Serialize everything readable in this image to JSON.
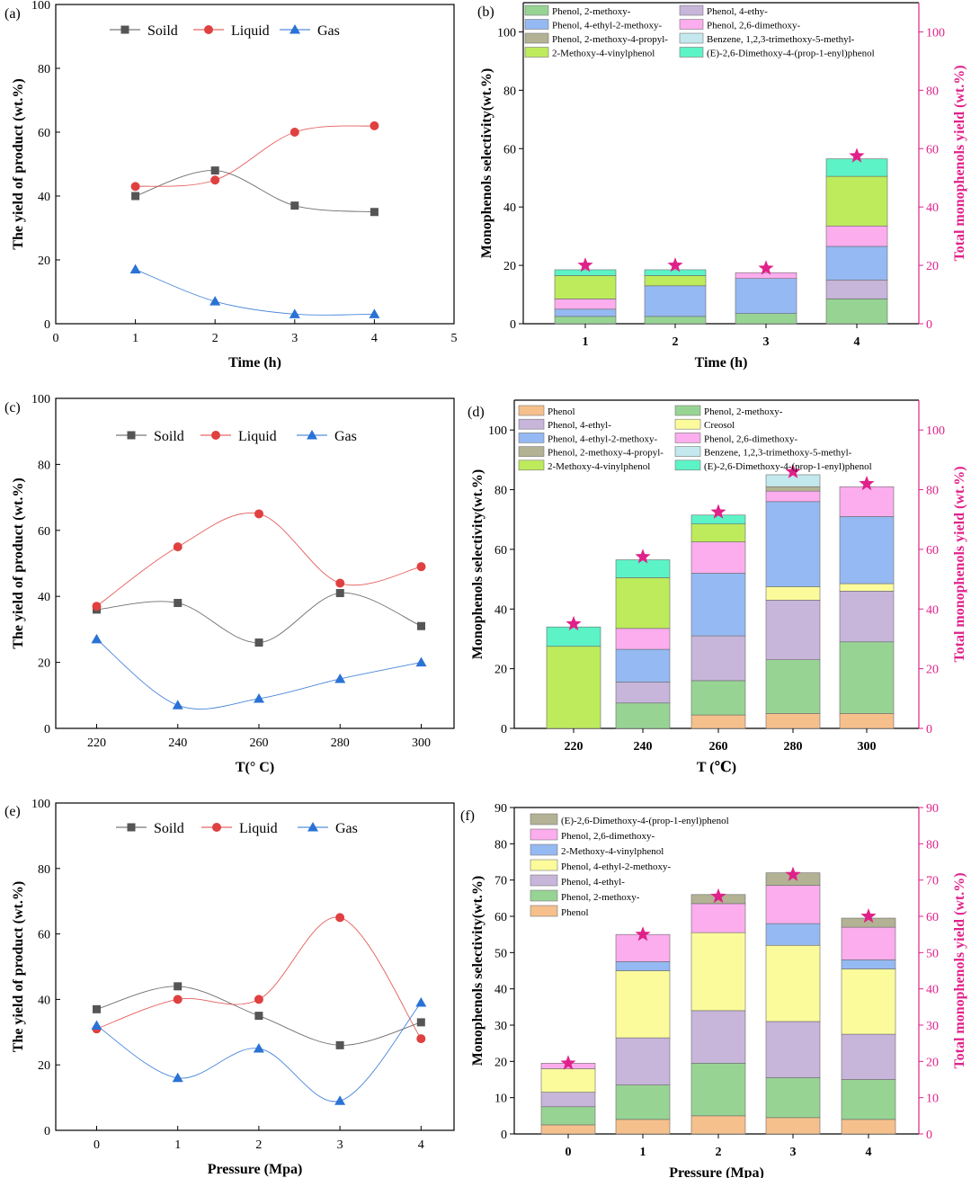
{
  "panel_labels": [
    "(a)",
    "(b)",
    "(c)",
    "(d)",
    "(e)",
    "(f)"
  ],
  "chart_data": [
    {
      "id": "a",
      "type": "line",
      "xlabel": "Time (h)",
      "ylabel": "The yield of product (wt.%)",
      "xlim": [
        0,
        5
      ],
      "ylim": [
        0,
        100
      ],
      "xticks": [
        "0",
        "1",
        "2",
        "3",
        "4",
        "5"
      ],
      "yticks": [
        "0",
        "20",
        "40",
        "60",
        "80",
        "100"
      ],
      "x": [
        1,
        2,
        3,
        4
      ],
      "series": [
        {
          "name": "Soild",
          "values": [
            40,
            48,
            37,
            35
          ],
          "color": "#555555",
          "marker": "square"
        },
        {
          "name": "Liquid",
          "values": [
            43,
            45,
            60,
            62
          ],
          "color": "#e04040",
          "marker": "circle"
        },
        {
          "name": "Gas",
          "values": [
            17,
            7,
            3,
            3
          ],
          "color": "#2a72d5",
          "marker": "triangle"
        }
      ]
    },
    {
      "id": "b",
      "type": "bar",
      "xlabel": "Time (h)",
      "ylabel": "Monophenols selectivity(wt.%)",
      "y2label": "Total monophenols yield (wt.%)",
      "ylim": [
        0,
        110
      ],
      "y2lim": [
        0,
        110
      ],
      "yticks": [
        "0",
        "20",
        "40",
        "60",
        "80",
        "100"
      ],
      "y2ticks": [
        "0",
        "20",
        "40",
        "60",
        "80",
        "100"
      ],
      "categories": [
        "1",
        "2",
        "3",
        "4"
      ],
      "series": [
        {
          "name": "Phenol, 2-methoxy-",
          "color": "#97d494",
          "values": [
            2.5,
            2.5,
            3.5,
            8.5
          ]
        },
        {
          "name": "Phenol, 4-ethy-",
          "color": "#c7b5da",
          "values": [
            0,
            0,
            0,
            6.5
          ]
        },
        {
          "name": "Phenol, 4-ethyl-2-methoxy-",
          "color": "#95b9f2",
          "values": [
            2.5,
            10.5,
            12,
            11.5
          ]
        },
        {
          "name": "Phenol, 2,6-dimethoxy-",
          "color": "#fbadee",
          "values": [
            3.5,
            0,
            2,
            7
          ]
        },
        {
          "name": "Phenol, 2-methoxy-4-propyl-",
          "color": "#b3b294",
          "values": [
            0,
            0,
            0,
            0
          ]
        },
        {
          "name": "Benzene, 1,2,3-trimethoxy-5-methyl-",
          "color": "#c3e9ee",
          "values": [
            0,
            0,
            0,
            0
          ]
        },
        {
          "name": "2-Methoxy-4-vinylphenol",
          "color": "#bdeb5c",
          "values": [
            8,
            3.5,
            0,
            17
          ]
        },
        {
          "name": "(E)-2,6-Dimethoxy-4-(prop-1-enyl)phenol",
          "color": "#5cf3c6",
          "values": [
            2,
            2,
            0,
            6
          ]
        }
      ],
      "total_yield": [
        20,
        20,
        19,
        57.5
      ],
      "legend_columns": 2
    },
    {
      "id": "c",
      "type": "line",
      "xlabel": "T(° C)",
      "ylabel": "The yield of product (wt.%)",
      "xlim": [
        210,
        310
      ],
      "ylim": [
        0,
        100
      ],
      "xticks": [
        "220",
        "240",
        "260",
        "280",
        "300"
      ],
      "yticks": [
        "0",
        "20",
        "40",
        "60",
        "80",
        "100"
      ],
      "x": [
        220,
        240,
        260,
        280,
        300
      ],
      "series": [
        {
          "name": "Soild",
          "values": [
            36,
            38,
            26,
            41,
            31
          ],
          "color": "#555555",
          "marker": "square"
        },
        {
          "name": "Liquid",
          "values": [
            37,
            55,
            65,
            44,
            49
          ],
          "color": "#e04040",
          "marker": "circle"
        },
        {
          "name": "Gas",
          "values": [
            27,
            7,
            9,
            15,
            20
          ],
          "color": "#2a72d5",
          "marker": "triangle"
        }
      ]
    },
    {
      "id": "d",
      "type": "bar",
      "xlabel": "T (℃)",
      "ylabel": "Monophenols selectivity(wt.%)",
      "y2label": "Total monophenols yield (wt.%)",
      "ylim": [
        0,
        110
      ],
      "y2lim": [
        0,
        110
      ],
      "yticks": [
        "0",
        "20",
        "40",
        "60",
        "80",
        "100"
      ],
      "y2ticks": [
        "0",
        "20",
        "40",
        "60",
        "80",
        "100"
      ],
      "categories": [
        "220",
        "240",
        "260",
        "280",
        "300"
      ],
      "series": [
        {
          "name": "Phenol",
          "color": "#f6c08c",
          "values": [
            0,
            0,
            4.5,
            5,
            5
          ]
        },
        {
          "name": "Phenol, 2-methoxy-",
          "color": "#97d494",
          "values": [
            0,
            8.5,
            11.5,
            18,
            24
          ]
        },
        {
          "name": "Phenol, 4-ethyl-",
          "color": "#c7b5da",
          "values": [
            0,
            7,
            15,
            20,
            17
          ]
        },
        {
          "name": "Creosol",
          "color": "#fbfb9c",
          "values": [
            0,
            0,
            0,
            4.5,
            2.5
          ]
        },
        {
          "name": "Phenol, 4-ethyl-2-methoxy-",
          "color": "#95b9f2",
          "values": [
            0,
            11,
            21,
            28.5,
            22.5
          ]
        },
        {
          "name": "Phenol, 2,6-dimethoxy-",
          "color": "#fbadee",
          "values": [
            0,
            7,
            10.5,
            3.5,
            10
          ]
        },
        {
          "name": "Phenol, 2-methoxy-4-propyl-",
          "color": "#b3b294",
          "values": [
            0,
            0,
            0,
            1.5,
            0
          ]
        },
        {
          "name": "Benzene, 1,2,3-trimethoxy-5-methyl-",
          "color": "#c3e9ee",
          "values": [
            0,
            0,
            0,
            4,
            0
          ]
        },
        {
          "name": "2-Methoxy-4-vinylphenol",
          "color": "#bdeb5c",
          "values": [
            27.5,
            17,
            6,
            0,
            0
          ]
        },
        {
          "name": "(E)-2,6-Dimethoxy-4-(prop-1-enyl)phenol",
          "color": "#5cf3c6",
          "values": [
            6.5,
            6,
            3,
            0,
            0
          ]
        }
      ],
      "total_yield": [
        35,
        57.5,
        72.5,
        86,
        82
      ],
      "legend_columns": 2
    },
    {
      "id": "e",
      "type": "line",
      "xlabel": "Pressure (Mpa)",
      "ylabel": "The yield of product (wt.%)",
      "xlim": [
        -0.5,
        4.5
      ],
      "ylim": [
        0,
        100
      ],
      "xticks": [
        "0",
        "1",
        "2",
        "3",
        "4"
      ],
      "yticks": [
        "0",
        "20",
        "40",
        "60",
        "80",
        "100"
      ],
      "x": [
        0,
        1,
        2,
        3,
        4
      ],
      "series": [
        {
          "name": "Soild",
          "values": [
            37,
            44,
            35,
            26,
            33
          ],
          "color": "#555555",
          "marker": "square"
        },
        {
          "name": "Liquid",
          "values": [
            31,
            40,
            40,
            65,
            28
          ],
          "color": "#e04040",
          "marker": "circle"
        },
        {
          "name": "Gas",
          "values": [
            32,
            16,
            25,
            9,
            39
          ],
          "color": "#2a72d5",
          "marker": "triangle"
        }
      ]
    },
    {
      "id": "f",
      "type": "bar",
      "xlabel": "Pressure (Mpa)",
      "ylabel": "Monophenols selectivity(wt.%)",
      "y2label": "Total monophenols yield (wt.%)",
      "ylim": [
        0,
        90
      ],
      "y2lim": [
        0,
        90
      ],
      "yticks": [
        "0",
        "10",
        "20",
        "30",
        "40",
        "50",
        "60",
        "70",
        "80",
        "90"
      ],
      "y2ticks": [
        "0",
        "10",
        "20",
        "30",
        "40",
        "50",
        "60",
        "70",
        "80",
        "90"
      ],
      "categories": [
        "0",
        "1",
        "2",
        "3",
        "4"
      ],
      "series": [
        {
          "name": "Phenol",
          "color": "#f6c08c",
          "values": [
            2.5,
            4,
            5,
            4.5,
            4
          ]
        },
        {
          "name": "Phenol, 2-methoxy-",
          "color": "#97d494",
          "values": [
            5,
            9.5,
            14.5,
            11,
            11
          ]
        },
        {
          "name": "Phenol, 4-ethyl-",
          "color": "#c7b5da",
          "values": [
            4,
            13,
            14.5,
            15.5,
            12.5
          ]
        },
        {
          "name": "Phenol, 4-ethyl-2-methoxy-",
          "color": "#fbfb9c",
          "values": [
            6.5,
            18.5,
            21.5,
            21,
            18
          ]
        },
        {
          "name": "2-Methoxy-4-vinylphenol",
          "color": "#95b9f2",
          "values": [
            0,
            2.5,
            0,
            6,
            2.5
          ]
        },
        {
          "name": "Phenol, 2,6-dimethoxy-",
          "color": "#fbadee",
          "values": [
            1.5,
            7.5,
            8,
            10.5,
            9
          ]
        },
        {
          "name": "(E)-2,6-Dimethoxy-4-(prop-1-enyl)phenol",
          "color": "#b3b294",
          "values": [
            0,
            0,
            2.5,
            3.5,
            2.5
          ]
        }
      ],
      "total_yield": [
        19.5,
        55,
        65.5,
        71.5,
        60
      ],
      "legend_columns": 1,
      "legend_order_reversed": true
    }
  ]
}
